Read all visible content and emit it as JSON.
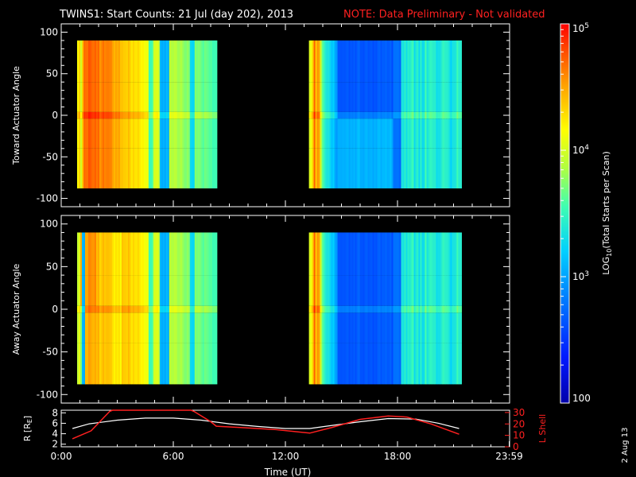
{
  "header": {
    "title": "TWINS1: Start Counts: 21 Jul (day 202), 2013",
    "note": "NOTE: Data Preliminary - Not validated"
  },
  "stamp": "2 Aug 13",
  "colors": {
    "background": "#000000",
    "note": "#ff2020",
    "l_shell": "#ff2020",
    "r_line": "#ffffff"
  },
  "chart_data": [
    {
      "type": "heatmap",
      "name": "toward",
      "ylabel": "Toward Actuator Angle",
      "ylim": [
        -110,
        110
      ],
      "yticks": [
        "100",
        "50",
        "0",
        "-50",
        "-100"
      ],
      "xlim_hours": [
        0,
        24
      ],
      "data_blocks_hours": [
        [
          0.85,
          8.35
        ],
        [
          13.3,
          21.4
        ]
      ],
      "angle_range": [
        -88,
        90
      ]
    },
    {
      "type": "heatmap",
      "name": "away",
      "ylabel": "Away Actuator Angle",
      "ylim": [
        -110,
        110
      ],
      "yticks": [
        "100",
        "50",
        "0",
        "-50",
        "-100"
      ],
      "xlim_hours": [
        0,
        24
      ],
      "data_blocks_hours": [
        [
          0.85,
          8.35
        ],
        [
          13.3,
          21.4
        ]
      ],
      "angle_range": [
        -88,
        90
      ]
    },
    {
      "type": "line",
      "name": "orbit",
      "ylabel_left": "R [R",
      "ylabel_left_sub": "E",
      "ylabel_right": "L Shell",
      "xlabel": "Time (UT)",
      "xticks": [
        "0:00",
        "6:00",
        "12:00",
        "18:00",
        "23:59"
      ],
      "yticks_left": [
        "8",
        "6",
        "4",
        "2"
      ],
      "yticks_right": [
        "30",
        "20",
        "10",
        "0"
      ],
      "ylim_left": [
        1.5,
        8.5
      ],
      "ylim_right": [
        0,
        32
      ],
      "series": [
        {
          "axis": "left",
          "x": [
            0.6,
            1.5,
            3,
            4.5,
            6,
            7.5,
            9,
            10.5,
            12,
            13.3,
            14.5,
            16,
            17.5,
            19,
            20.2,
            21.3
          ],
          "y": [
            5.0,
            5.9,
            6.6,
            7.0,
            7.0,
            6.6,
            5.9,
            5.4,
            5.0,
            5.0,
            5.6,
            6.3,
            6.9,
            6.8,
            6.0,
            5.0
          ]
        },
        {
          "axis": "right",
          "x": [
            0.6,
            1.6,
            2.6,
            2.75,
            6.95,
            7.1,
            8.0,
            8.3,
            9.5,
            11.5,
            13.3,
            14.5,
            16.0,
            17.5,
            18.5,
            19.8,
            21.3
          ],
          "y": [
            7.0,
            14.0,
            31.0,
            32.0,
            32.0,
            31.0,
            22.0,
            18.0,
            17.0,
            15.0,
            12.0,
            17.0,
            24.0,
            27.0,
            26.0,
            20.0,
            11.0
          ]
        }
      ]
    },
    {
      "type": "heatmap",
      "name": "colorbar",
      "label": "LOG",
      "label_sub": "10",
      "label_rest": "(Total Starts per Scan)",
      "ticks": [
        {
          "base": "10",
          "exp": "5",
          "log": 5
        },
        {
          "base": "10",
          "exp": "4",
          "log": 4
        },
        {
          "base": "10",
          "exp": "3",
          "log": 3
        },
        {
          "base": "100",
          "exp": "",
          "log": 2
        }
      ],
      "range_log": [
        2,
        5
      ]
    }
  ]
}
